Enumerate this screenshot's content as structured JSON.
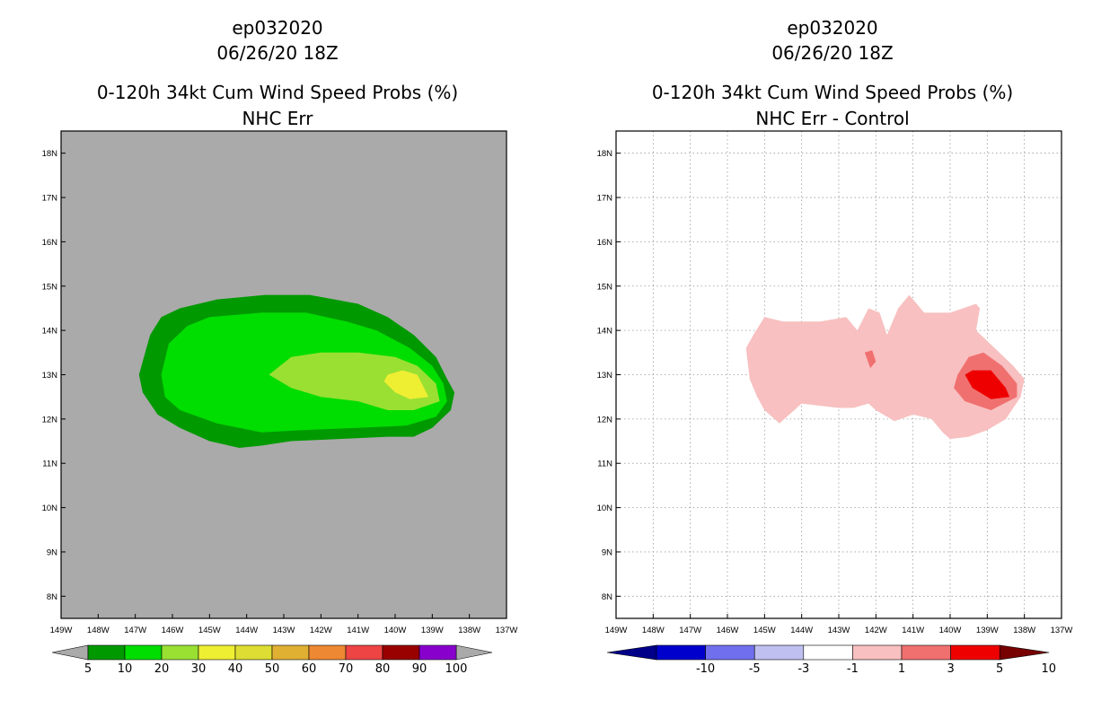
{
  "chart_data": [
    {
      "type": "contour",
      "storm_id": "ep032020",
      "datetime": "06/26/20 18Z",
      "title": "0-120h 34kt Cum Wind Speed Probs (%)",
      "subtitle": "NHC Err",
      "background": "#aaaaaa",
      "grid": false,
      "xlim": [
        -149,
        -137
      ],
      "ylim": [
        7.5,
        18.5
      ],
      "x_ticks": [
        "149W",
        "148W",
        "147W",
        "146W",
        "145W",
        "144W",
        "143W",
        "142W",
        "141W",
        "140W",
        "139W",
        "138W",
        "137W"
      ],
      "y_ticks": [
        "8N",
        "9N",
        "10N",
        "11N",
        "12N",
        "13N",
        "14N",
        "15N",
        "16N",
        "17N",
        "18N"
      ],
      "colorbar": {
        "labels": [
          "5",
          "10",
          "20",
          "30",
          "40",
          "50",
          "60",
          "70",
          "80",
          "90",
          "100"
        ],
        "colors": [
          "#009900",
          "#00dd00",
          "#99e033",
          "#eeee33",
          "#dddd33",
          "#e0b033",
          "#ee8833",
          "#ee4444",
          "#990000",
          "#8800cc"
        ],
        "end_colors": [
          "#aaaaaa",
          "#aaaaaa"
        ]
      },
      "levels": [
        {
          "min": 5,
          "color": "#009900",
          "polygon": [
            [
              -146.8,
              13.3
            ],
            [
              -146.6,
              13.9
            ],
            [
              -146.3,
              14.3
            ],
            [
              -145.8,
              14.5
            ],
            [
              -144.8,
              14.7
            ],
            [
              -143.5,
              14.8
            ],
            [
              -142.3,
              14.8
            ],
            [
              -141.0,
              14.6
            ],
            [
              -140.2,
              14.3
            ],
            [
              -139.5,
              13.9
            ],
            [
              -138.9,
              13.4
            ],
            [
              -138.6,
              12.9
            ],
            [
              -138.4,
              12.6
            ],
            [
              -138.5,
              12.2
            ],
            [
              -139.0,
              11.8
            ],
            [
              -139.5,
              11.6
            ],
            [
              -140.2,
              11.6
            ],
            [
              -141.5,
              11.55
            ],
            [
              -142.8,
              11.5
            ],
            [
              -143.6,
              11.4
            ],
            [
              -144.2,
              11.35
            ],
            [
              -145.0,
              11.5
            ],
            [
              -145.8,
              11.8
            ],
            [
              -146.4,
              12.1
            ],
            [
              -146.8,
              12.6
            ],
            [
              -146.9,
              13.0
            ]
          ]
        },
        {
          "min": 10,
          "color": "#00dd00",
          "polygon": [
            [
              -146.3,
              13.0
            ],
            [
              -146.1,
              13.7
            ],
            [
              -145.6,
              14.1
            ],
            [
              -145.0,
              14.3
            ],
            [
              -143.6,
              14.4
            ],
            [
              -142.4,
              14.4
            ],
            [
              -141.3,
              14.2
            ],
            [
              -140.5,
              14.0
            ],
            [
              -139.6,
              13.6
            ],
            [
              -139.0,
              13.2
            ],
            [
              -138.7,
              12.8
            ],
            [
              -138.6,
              12.4
            ],
            [
              -138.9,
              12.05
            ],
            [
              -139.7,
              11.85
            ],
            [
              -141.0,
              11.8
            ],
            [
              -142.5,
              11.75
            ],
            [
              -143.6,
              11.7
            ],
            [
              -144.8,
              11.9
            ],
            [
              -145.8,
              12.2
            ],
            [
              -146.2,
              12.5
            ]
          ]
        },
        {
          "min": 20,
          "color": "#99e033",
          "polygon": [
            [
              -143.4,
              13.0
            ],
            [
              -142.8,
              13.4
            ],
            [
              -142.0,
              13.5
            ],
            [
              -141.0,
              13.5
            ],
            [
              -140.0,
              13.4
            ],
            [
              -139.4,
              13.2
            ],
            [
              -138.9,
              12.8
            ],
            [
              -138.8,
              12.4
            ],
            [
              -139.5,
              12.2
            ],
            [
              -140.2,
              12.2
            ],
            [
              -141.0,
              12.4
            ],
            [
              -142.0,
              12.5
            ],
            [
              -142.8,
              12.7
            ]
          ]
        },
        {
          "min": 30,
          "color": "#eeee33",
          "polygon": [
            [
              -140.2,
              13.0
            ],
            [
              -139.8,
              13.1
            ],
            [
              -139.4,
              13.0
            ],
            [
              -139.1,
              12.5
            ],
            [
              -139.6,
              12.45
            ],
            [
              -140.0,
              12.6
            ],
            [
              -140.3,
              12.85
            ]
          ]
        }
      ]
    },
    {
      "type": "contour",
      "storm_id": "ep032020",
      "datetime": "06/26/20 18Z",
      "title": "0-120h 34kt Cum Wind Speed Probs (%)",
      "subtitle": "NHC Err - Control",
      "background": "#ffffff",
      "grid": true,
      "xlim": [
        -149,
        -137
      ],
      "ylim": [
        7.5,
        18.5
      ],
      "x_ticks": [
        "149W",
        "148W",
        "147W",
        "146W",
        "145W",
        "144W",
        "143W",
        "142W",
        "141W",
        "140W",
        "139W",
        "138W",
        "137W"
      ],
      "y_ticks": [
        "8N",
        "9N",
        "10N",
        "11N",
        "12N",
        "13N",
        "14N",
        "15N",
        "16N",
        "17N",
        "18N"
      ],
      "colorbar": {
        "labels": [
          "-10",
          "-5",
          "-3",
          "-1",
          "1",
          "3",
          "5",
          "10"
        ],
        "colors": [
          "#0000cc",
          "#7070ee",
          "#c0c0f0",
          "#ffffff",
          "#f8c0c0",
          "#f07070",
          "#ee0000"
        ],
        "end_colors": [
          "#000088",
          "#770000"
        ]
      },
      "levels": [
        {
          "min": 1,
          "color": "#f8c0c0",
          "polygon": [
            [
              -145.5,
              13.6
            ],
            [
              -145.3,
              13.9
            ],
            [
              -145.0,
              14.3
            ],
            [
              -144.5,
              14.2
            ],
            [
              -143.5,
              14.2
            ],
            [
              -142.8,
              14.3
            ],
            [
              -142.5,
              14.0
            ],
            [
              -142.2,
              14.5
            ],
            [
              -141.9,
              14.4
            ],
            [
              -141.7,
              13.9
            ],
            [
              -141.4,
              14.5
            ],
            [
              -141.1,
              14.8
            ],
            [
              -140.7,
              14.4
            ],
            [
              -140.0,
              14.4
            ],
            [
              -139.3,
              14.6
            ],
            [
              -139.2,
              14.5
            ],
            [
              -139.3,
              14.0
            ],
            [
              -138.8,
              13.6
            ],
            [
              -138.3,
              13.2
            ],
            [
              -138.0,
              12.9
            ],
            [
              -138.1,
              12.5
            ],
            [
              -138.5,
              12.0
            ],
            [
              -139.0,
              11.75
            ],
            [
              -139.5,
              11.6
            ],
            [
              -140.0,
              11.55
            ],
            [
              -140.2,
              11.7
            ],
            [
              -140.5,
              12.0
            ],
            [
              -141.0,
              12.1
            ],
            [
              -141.5,
              11.95
            ],
            [
              -142.0,
              12.2
            ],
            [
              -142.2,
              12.35
            ],
            [
              -142.6,
              12.25
            ],
            [
              -143.0,
              12.25
            ],
            [
              -143.5,
              12.3
            ],
            [
              -144.0,
              12.35
            ],
            [
              -144.6,
              11.9
            ],
            [
              -145.0,
              12.2
            ],
            [
              -145.2,
              12.5
            ],
            [
              -145.4,
              12.9
            ]
          ]
        },
        {
          "min": 3,
          "color": "#f07070",
          "polygon": [
            [
              -139.8,
              13.0
            ],
            [
              -139.5,
              13.4
            ],
            [
              -139.1,
              13.5
            ],
            [
              -138.6,
              13.2
            ],
            [
              -138.2,
              12.8
            ],
            [
              -138.2,
              12.5
            ],
            [
              -138.9,
              12.2
            ],
            [
              -139.6,
              12.4
            ],
            [
              -139.9,
              12.7
            ]
          ]
        },
        {
          "min": 3,
          "color": "#f07070",
          "polygon": [
            [
              -142.3,
              13.5
            ],
            [
              -142.1,
              13.55
            ],
            [
              -142.0,
              13.3
            ],
            [
              -142.15,
              13.15
            ]
          ]
        },
        {
          "min": 5,
          "color": "#ee0000",
          "polygon": [
            [
              -139.6,
              13.0
            ],
            [
              -139.4,
              13.1
            ],
            [
              -138.9,
              13.1
            ],
            [
              -138.5,
              12.7
            ],
            [
              -138.4,
              12.5
            ],
            [
              -138.9,
              12.45
            ],
            [
              -139.4,
              12.7
            ]
          ]
        }
      ]
    }
  ]
}
